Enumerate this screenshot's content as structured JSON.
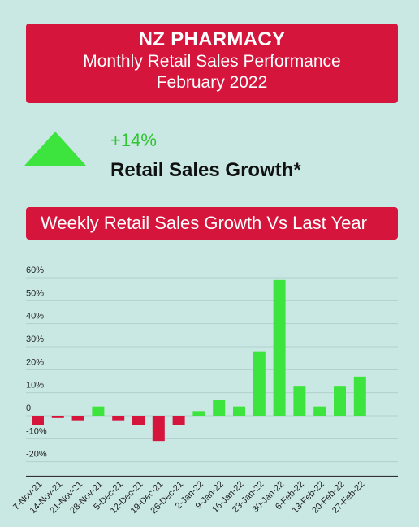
{
  "header": {
    "title": "NZ PHARMACY",
    "subtitle": "Monthly Retail Sales Performance",
    "period": "February 2022"
  },
  "kpi": {
    "value": "+14%",
    "label": "Retail Sales Growth*",
    "arrow_icon": "up-triangle-icon"
  },
  "section": {
    "title": "Weekly Retail Sales Growth Vs Last Year"
  },
  "colors": {
    "brand_red": "#d5153b",
    "positive": "#3de43d",
    "negative": "#d5153b",
    "background": "#c9e8e4"
  },
  "chart_data": {
    "type": "bar",
    "categories": [
      "7-Nov-21",
      "14-Nov-21",
      "21-Nov-21",
      "28-Nov-21",
      "5-Dec-21",
      "12-Dec-21",
      "19-Dec-21",
      "26-Dec-21",
      "2-Jan-22",
      "9-Jan-22",
      "16-Jan-22",
      "23-Jan-22",
      "30-Jan-22",
      "6-Feb-22",
      "13-Feb-22",
      "20-Feb-22",
      "27-Feb-22"
    ],
    "values": [
      -4,
      -1,
      -2,
      4,
      -2,
      -4,
      -11,
      -4,
      2,
      7,
      4,
      28,
      59,
      13,
      4,
      13,
      17
    ],
    "yticks": [
      -20,
      -10,
      0,
      10,
      20,
      30,
      40,
      50,
      60
    ],
    "ytick_labels": [
      "-20%",
      "-10%",
      "0",
      "10%",
      "20%",
      "30%",
      "40%",
      "50%",
      "60%"
    ],
    "ylim": [
      -20,
      60
    ],
    "grid": true,
    "title": "",
    "xlabel": "",
    "ylabel": ""
  }
}
